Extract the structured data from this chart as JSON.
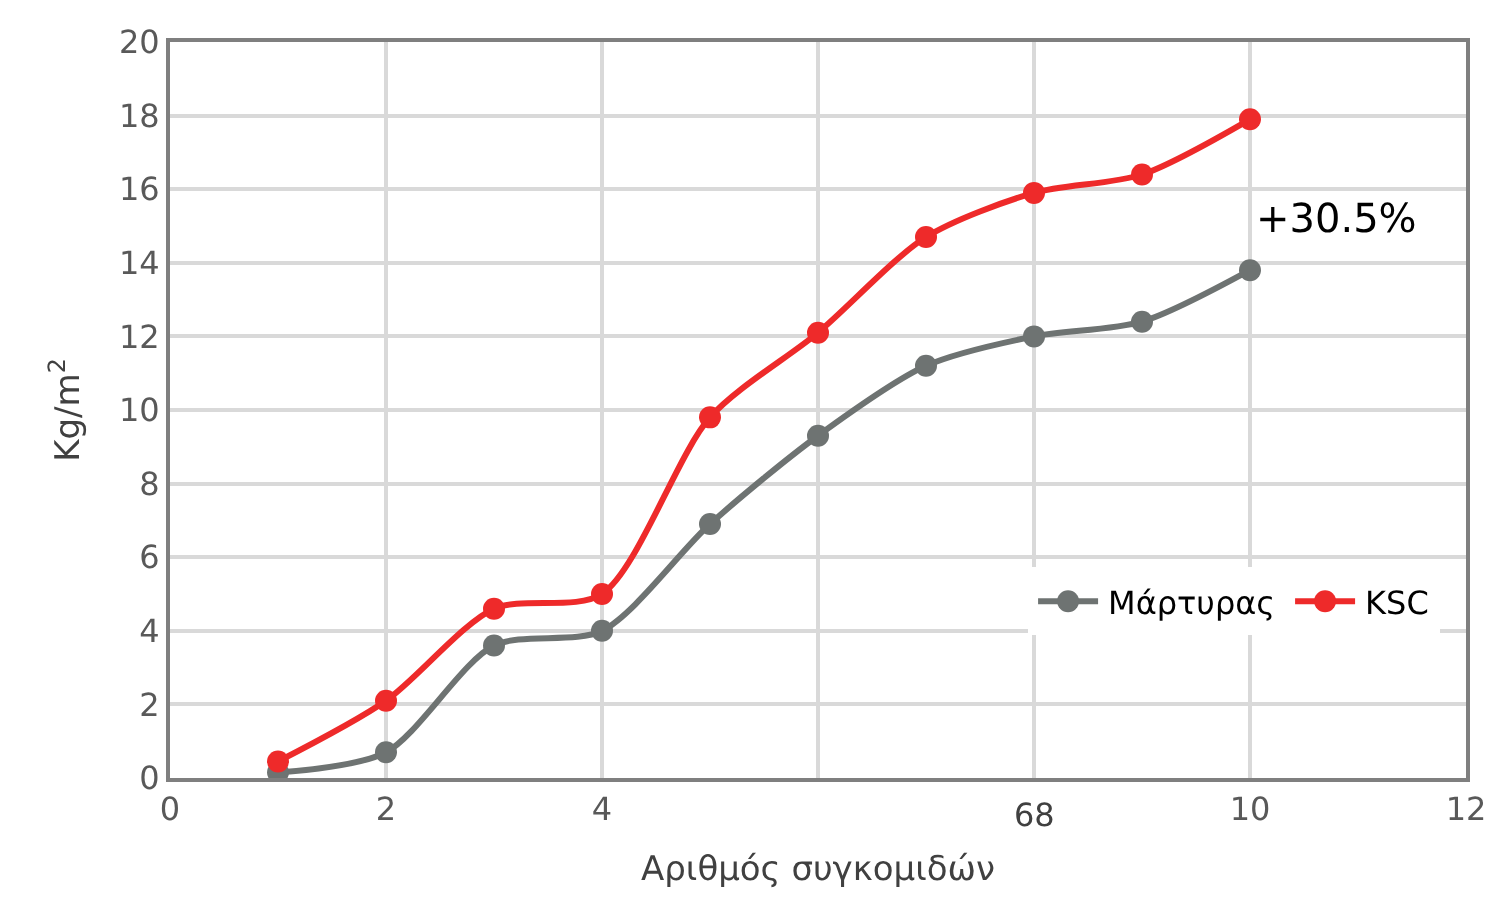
{
  "chart_data": {
    "type": "line",
    "xlabel": "Αριθμός συγκομιδών",
    "ylabel": "Kg/m$^{2}$",
    "x": [
      1,
      2,
      3,
      4,
      5,
      6,
      7,
      8,
      9,
      10
    ],
    "series": [
      {
        "name": "Μάρτυρας",
        "color": "#6e7372",
        "values": [
          0.15,
          0.7,
          3.6,
          4.0,
          6.9,
          9.3,
          11.2,
          12.0,
          12.4,
          13.8
        ]
      },
      {
        "name": "KSC",
        "color": "#ee2a2a",
        "values": [
          0.45,
          2.1,
          4.6,
          5.0,
          9.8,
          12.1,
          14.7,
          15.9,
          16.4,
          17.9
        ]
      }
    ],
    "xlim": [
      0,
      12
    ],
    "xticks": [
      0,
      2,
      4,
      {
        "value": 6,
        "label": null
      },
      {
        "value": 8,
        "label": null
      },
      10,
      12
    ],
    "ylim": [
      0,
      20
    ],
    "yticks": [
      0,
      2,
      4,
      6,
      8,
      10,
      12,
      14,
      16,
      18,
      20
    ],
    "annotations": [
      "+30.5%",
      "68"
    ],
    "grid": true,
    "legend": "bottom right",
    "marker": "circle",
    "line_style": "solid"
  }
}
